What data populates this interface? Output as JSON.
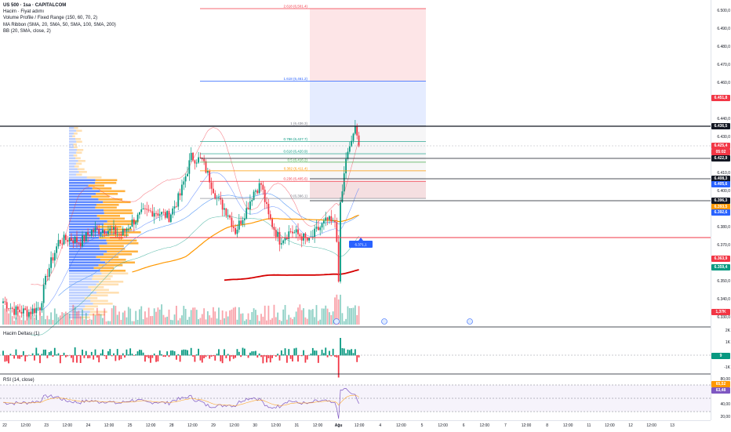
{
  "legend": {
    "symbol": "US 500 · 1sa · CAPITALCOM",
    "volume": "Hacim · Fiyat adımı",
    "volume_profile": "Volume Profile / Fixed Range (150, 60, 70, 2)",
    "ma_ribbon": "MA Ribbon (SMA, 20, SMA, 50, SMA, 100, SMA, 200)",
    "bb": "BB (20, SMA, close, 2)"
  },
  "panes": {
    "delta_label": "Hacim Deltası (1)",
    "rsi_label": "RSI (14, close)"
  },
  "fib_levels": [
    {
      "label": "2.618 (6,501.4)",
      "price": 6501.4,
      "color": "#f23645"
    },
    {
      "label": "1.618 (6,461.2)",
      "price": 6461.2,
      "color": "#2962ff"
    },
    {
      "label": "1 (6,436.3)",
      "price": 6436.3,
      "color": "#787b86"
    },
    {
      "label": "0.786 (6,427.7)",
      "price": 6427.7,
      "color": "#089981"
    },
    {
      "label": "0.618 (6,420.9)",
      "price": 6420.9,
      "color": "#089981"
    },
    {
      "label": "0.5 (6,416.2)",
      "price": 6416.2,
      "color": "#4caf50"
    },
    {
      "label": "0.382 (6,411.4)",
      "price": 6411.4,
      "color": "#ff9800"
    },
    {
      "label": "0.236 (6,405.6)",
      "price": 6405.6,
      "color": "#f23645"
    },
    {
      "label": "0 (6,396.1)",
      "price": 6396.1,
      "color": "#787b86"
    }
  ],
  "price_ticks": [
    "6.500,0",
    "6.490,0",
    "6.480,0",
    "6.470,0",
    "6.460,0",
    "6.440,0",
    "6.430,0",
    "6.410,0",
    "6.400,0",
    "6.380,0",
    "6.370,0",
    "6.350,0",
    "6.340,0",
    "6.330,0"
  ],
  "price_tags": [
    {
      "text": "6.451,8",
      "bg": "#f23645",
      "y": 125
    },
    {
      "text": "6.436,5",
      "bg": "#131722",
      "y": 161
    },
    {
      "text": "6.425,4",
      "bg": "#f23645",
      "y": 186
    },
    {
      "text": "05:02",
      "bg": "#f23645",
      "y": 194
    },
    {
      "text": "6.422,9",
      "bg": "#131722",
      "y": 202
    },
    {
      "text": "6.408,3",
      "bg": "#131722",
      "y": 228
    },
    {
      "text": "6.405,6",
      "bg": "#2962ff",
      "y": 235
    },
    {
      "text": "6.396,3",
      "bg": "#131722",
      "y": 256
    },
    {
      "text": "6.393,5",
      "bg": "#ff9800",
      "y": 264
    },
    {
      "text": "6.392,6",
      "bg": "#2962ff",
      "y": 271
    },
    {
      "text": "6.363,9",
      "bg": "#f23645",
      "y": 330
    },
    {
      "text": "6.359,4",
      "bg": "#089981",
      "y": 341
    },
    {
      "text": "1,37K",
      "bg": "#f23645",
      "y": 398
    }
  ],
  "delta_ticks": [
    "2K",
    "1K",
    "-1K"
  ],
  "delta_tag": "9",
  "rsi_ticks": [
    "80,00",
    "40,00",
    "20,00"
  ],
  "rsi_tags": [
    {
      "text": "65,52",
      "bg": "#ff9800"
    },
    {
      "text": "63,48",
      "bg": "#7e57c2"
    }
  ],
  "alert_label": "6.371,1",
  "time_labels": [
    {
      "text": "22",
      "bold": false
    },
    {
      "text": "12:00",
      "bold": false
    },
    {
      "text": "23",
      "bold": false
    },
    {
      "text": "12:00",
      "bold": false
    },
    {
      "text": "24",
      "bold": false
    },
    {
      "text": "12:00",
      "bold": false
    },
    {
      "text": "25",
      "bold": false
    },
    {
      "text": "12:00",
      "bold": false
    },
    {
      "text": "28",
      "bold": false
    },
    {
      "text": "12:00",
      "bold": false
    },
    {
      "text": "29",
      "bold": false
    },
    {
      "text": "12:00",
      "bold": false
    },
    {
      "text": "30",
      "bold": false
    },
    {
      "text": "12:00",
      "bold": false
    },
    {
      "text": "31",
      "bold": false
    },
    {
      "text": "12:00",
      "bold": false
    },
    {
      "text": "Ağu",
      "bold": true
    },
    {
      "text": "12:00",
      "bold": false
    },
    {
      "text": "4",
      "bold": false
    },
    {
      "text": "12:00",
      "bold": false
    },
    {
      "text": "5",
      "bold": false
    },
    {
      "text": "12:00",
      "bold": false
    },
    {
      "text": "6",
      "bold": false
    },
    {
      "text": "12:00",
      "bold": false
    },
    {
      "text": "7",
      "bold": false
    },
    {
      "text": "12:00",
      "bold": false
    },
    {
      "text": "8",
      "bold": false
    },
    {
      "text": "12:00",
      "bold": false
    },
    {
      "text": "11",
      "bold": false
    },
    {
      "text": "12:00",
      "bold": false
    },
    {
      "text": "12",
      "bold": false
    },
    {
      "text": "12:00",
      "bold": false
    },
    {
      "text": "13",
      "bold": false
    }
  ],
  "colors": {
    "up": "#089981",
    "down": "#f23645",
    "accent": "#2962ff",
    "ma_orange": "#ff9800",
    "ma_red": "#d50000",
    "rsi": "#7e57c2"
  }
}
